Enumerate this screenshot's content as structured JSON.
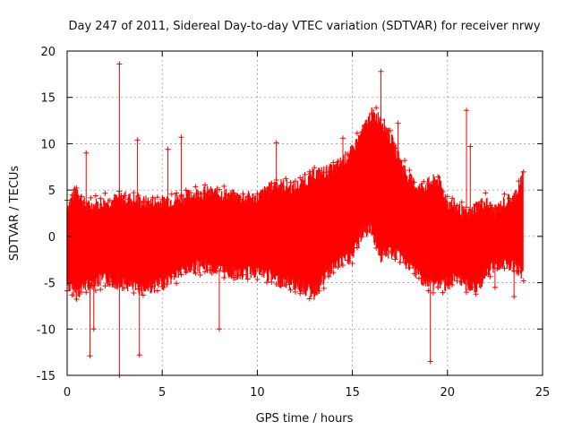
{
  "chart_data": {
    "type": "scatter",
    "title": "Day 247 of 2011, Sidereal Day-to-day VTEC variation (SDTVAR) for receiver nrwy",
    "xlabel": "GPS time / hours",
    "ylabel": "SDTVAR / TECUs",
    "xlim": [
      0,
      25
    ],
    "ylim": [
      -15,
      20
    ],
    "xticks": [
      0,
      5,
      10,
      15,
      20,
      25
    ],
    "xtick_labels": [
      "0",
      "5",
      "10",
      "15",
      "20",
      "25"
    ],
    "yticks": [
      -15,
      -10,
      -5,
      0,
      5,
      10,
      15,
      20
    ],
    "ytick_labels": [
      "-15",
      "-10",
      "-5",
      "0",
      "5",
      "10",
      "15",
      "20"
    ],
    "grid": true,
    "marker": "+",
    "color": "#ff0000",
    "series": [
      {
        "name": "SDTVAR",
        "envelope": {
          "x": [
            0,
            0.5,
            1,
            2,
            3,
            4,
            5,
            6,
            7,
            8,
            9,
            10,
            11,
            12,
            13,
            14,
            15,
            15.5,
            16,
            16.5,
            17,
            17.5,
            18,
            18.5,
            19,
            19.5,
            20,
            20.5,
            21,
            21.5,
            22,
            22.5,
            23,
            23.5,
            24
          ],
          "upper": [
            3,
            5,
            3,
            3.5,
            4,
            3.5,
            3.5,
            4,
            4.5,
            4.5,
            4,
            4,
            5.5,
            5,
            6.5,
            7,
            9,
            11,
            13,
            12.5,
            10.5,
            8,
            6,
            5,
            5.5,
            6,
            3.5,
            3,
            2,
            3,
            3.5,
            2.5,
            3.5,
            4,
            6.5
          ],
          "lower": [
            -5,
            -6,
            -5,
            -4.5,
            -5,
            -5.5,
            -5,
            -3.5,
            -3,
            -3.5,
            -4,
            -3.5,
            -4.5,
            -5,
            -6,
            -3,
            -2,
            0.5,
            1,
            -2,
            -1.5,
            -2,
            -3,
            -4,
            -5,
            -5,
            -5,
            -4.5,
            -5,
            -5.5,
            -4,
            -3,
            -2.5,
            -3,
            -4
          ]
        },
        "outliers": [
          {
            "x": 1.0,
            "y": 9
          },
          {
            "x": 1.4,
            "y": -10
          },
          {
            "x": 1.2,
            "y": -12.9
          },
          {
            "x": 2.75,
            "y": 18.6
          },
          {
            "x": 2.75,
            "y": -15
          },
          {
            "x": 3.7,
            "y": 10.4
          },
          {
            "x": 3.8,
            "y": -12.8
          },
          {
            "x": 5.3,
            "y": 9.4
          },
          {
            "x": 6.0,
            "y": 10.7
          },
          {
            "x": 8.0,
            "y": -10
          },
          {
            "x": 11.0,
            "y": 10.1
          },
          {
            "x": 14.5,
            "y": 10.6
          },
          {
            "x": 16.5,
            "y": 17.8
          },
          {
            "x": 17.4,
            "y": 12.2
          },
          {
            "x": 19.1,
            "y": -13.5
          },
          {
            "x": 21.0,
            "y": 13.6
          },
          {
            "x": 21.2,
            "y": 9.7
          },
          {
            "x": 22.5,
            "y": -5.5
          },
          {
            "x": 23.5,
            "y": -6.5
          }
        ]
      }
    ]
  }
}
